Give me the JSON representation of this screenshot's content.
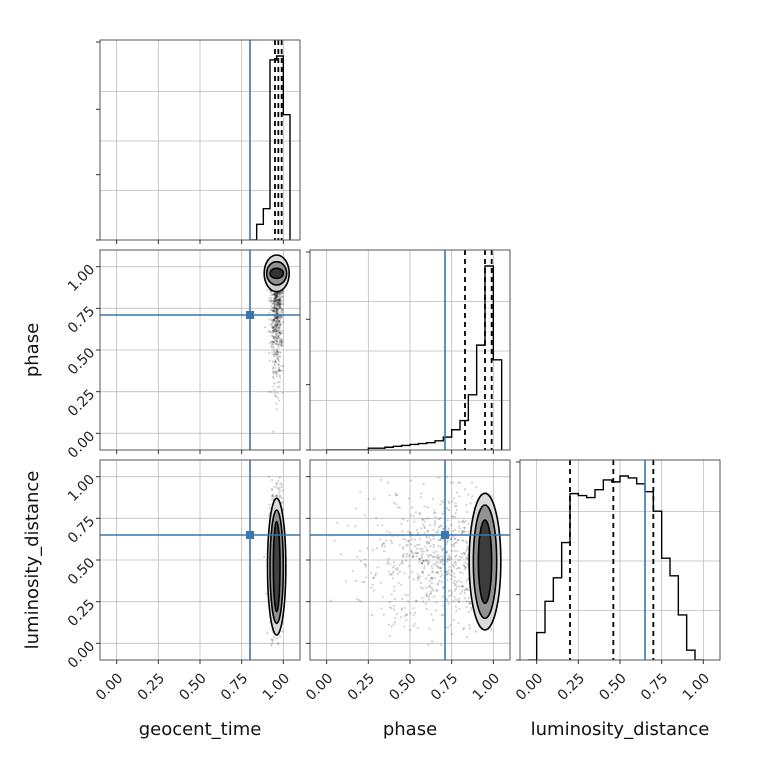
{
  "chart_data": {
    "type": "corner",
    "parameters": [
      "geocent_time",
      "phase",
      "luminosity_distance"
    ],
    "xlabels": [
      "geocent_time",
      "phase",
      "luminosity_distance"
    ],
    "ylabels": [
      "",
      "phase",
      "luminosity_distance"
    ],
    "axis_range": [
      -0.1,
      1.1
    ],
    "tick_values": [
      0.0,
      0.25,
      0.5,
      0.75,
      1.0
    ],
    "tick_labels": [
      "0.00",
      "0.25",
      "0.50",
      "0.75",
      "1.00"
    ],
    "grid": true,
    "truth_color": "#3a76af",
    "truths": [
      0.8,
      0.71,
      0.65
    ],
    "quantiles": [
      [
        0.95,
        0.97,
        0.99
      ],
      [
        0.83,
        0.95,
        0.99
      ],
      [
        0.2,
        0.46,
        0.7
      ]
    ],
    "histograms": [
      {
        "bin_edges": [
          0.8,
          0.84,
          0.88,
          0.92,
          0.96,
          1.0,
          1.04
        ],
        "counts": [
          0.0,
          0.08,
          0.16,
          0.92,
          0.94,
          0.64
        ]
      },
      {
        "bin_edges": [
          0.0,
          0.1,
          0.2,
          0.25,
          0.35,
          0.4,
          0.45,
          0.5,
          0.55,
          0.6,
          0.65,
          0.7,
          0.75,
          0.8,
          0.85,
          0.9,
          0.95,
          1.0,
          1.05
        ],
        "counts": [
          0.0,
          0.0,
          0.0,
          0.01,
          0.015,
          0.02,
          0.025,
          0.03,
          0.035,
          0.04,
          0.05,
          0.07,
          0.11,
          0.16,
          0.3,
          0.57,
          1.0,
          0.49
        ]
      },
      {
        "bin_edges": [
          -0.05,
          0.0,
          0.05,
          0.1,
          0.15,
          0.2,
          0.25,
          0.3,
          0.35,
          0.4,
          0.45,
          0.5,
          0.55,
          0.6,
          0.65,
          0.7,
          0.75,
          0.8,
          0.85,
          0.9,
          0.95,
          1.0
        ],
        "counts": [
          0.0,
          0.14,
          0.3,
          0.42,
          0.6,
          0.85,
          0.84,
          0.83,
          0.87,
          0.92,
          0.91,
          0.94,
          0.93,
          0.9,
          0.86,
          0.76,
          0.52,
          0.43,
          0.23,
          0.05,
          0.0
        ]
      }
    ],
    "contours": [
      {
        "x_param": "geocent_time",
        "y_param": "phase",
        "center": [
          0.96,
          0.96
        ],
        "levels": [
          {
            "rx": 0.04,
            "ry": 0.03,
            "fill": "#2a2a2a"
          },
          {
            "rx": 0.06,
            "ry": 0.07,
            "fill": "#8a8a8a"
          },
          {
            "rx": 0.075,
            "ry": 0.11,
            "fill": "#d6d6d6"
          }
        ]
      },
      {
        "x_param": "geocent_time",
        "y_param": "luminosity_distance",
        "center": [
          0.96,
          0.46
        ],
        "levels": [
          {
            "rx": 0.02,
            "ry": 0.27,
            "fill": "#3a3a3a"
          },
          {
            "rx": 0.04,
            "ry": 0.34,
            "fill": "#8a8a8a"
          },
          {
            "rx": 0.055,
            "ry": 0.41,
            "fill": "#d6d6d6"
          }
        ]
      },
      {
        "x_param": "phase",
        "y_param": "luminosity_distance",
        "center": [
          0.95,
          0.49
        ],
        "levels": [
          {
            "rx": 0.04,
            "ry": 0.25,
            "fill": "#333333"
          },
          {
            "rx": 0.07,
            "ry": 0.34,
            "fill": "#8a8a8a"
          },
          {
            "rx": 0.095,
            "ry": 0.41,
            "fill": "#d6d6d6"
          }
        ]
      }
    ]
  }
}
